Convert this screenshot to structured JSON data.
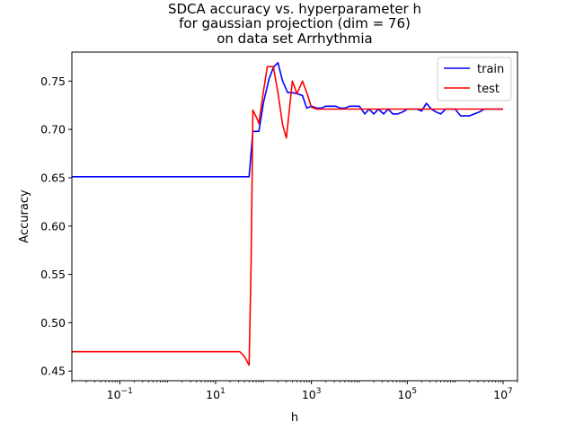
{
  "chart_data": {
    "type": "line",
    "title_lines": [
      "SDCA accuracy vs. hyperparameter h",
      "for gaussian projection (dim = 76)",
      "on data set Arrhythmia"
    ],
    "xlabel": "h",
    "ylabel": "Accuracy",
    "xscale": "log",
    "xlim": [
      0.01,
      20000000
    ],
    "ylim": [
      0.44,
      0.78
    ],
    "xticks": [
      {
        "value": 0.1,
        "mantissa": "10",
        "exponent": "−1"
      },
      {
        "value": 10,
        "mantissa": "10",
        "exponent": "1"
      },
      {
        "value": 1000,
        "mantissa": "10",
        "exponent": "3"
      },
      {
        "value": 100000,
        "mantissa": "10",
        "exponent": "5"
      },
      {
        "value": 10000000,
        "mantissa": "10",
        "exponent": "7"
      }
    ],
    "yticks": [
      "0.45",
      "0.50",
      "0.55",
      "0.60",
      "0.65",
      "0.70",
      "0.75"
    ],
    "legend_position": "upper right",
    "grid": false,
    "series": [
      {
        "name": "train",
        "color": "#0000ff",
        "points": [
          [
            0.01,
            0.651
          ],
          [
            20,
            0.651
          ],
          [
            50,
            0.651
          ],
          [
            60,
            0.698
          ],
          [
            80,
            0.698
          ],
          [
            100,
            0.728
          ],
          [
            130,
            0.752
          ],
          [
            160,
            0.764
          ],
          [
            200,
            0.769
          ],
          [
            250,
            0.75
          ],
          [
            320,
            0.738
          ],
          [
            400,
            0.738
          ],
          [
            500,
            0.737
          ],
          [
            650,
            0.735
          ],
          [
            800,
            0.722
          ],
          [
            1000,
            0.724
          ],
          [
            1300,
            0.722
          ],
          [
            1600,
            0.722
          ],
          [
            2000,
            0.724
          ],
          [
            2500,
            0.724
          ],
          [
            3200,
            0.724
          ],
          [
            4000,
            0.722
          ],
          [
            5000,
            0.722
          ],
          [
            6300,
            0.724
          ],
          [
            8000,
            0.724
          ],
          [
            10000,
            0.724
          ],
          [
            13000,
            0.716
          ],
          [
            16000,
            0.721
          ],
          [
            20000,
            0.716
          ],
          [
            25000,
            0.721
          ],
          [
            32000,
            0.716
          ],
          [
            40000,
            0.721
          ],
          [
            50000,
            0.716
          ],
          [
            63000,
            0.716
          ],
          [
            80000,
            0.718
          ],
          [
            100000,
            0.721
          ],
          [
            130000,
            0.721
          ],
          [
            160000,
            0.721
          ],
          [
            200000,
            0.719
          ],
          [
            250000,
            0.727
          ],
          [
            320000,
            0.721
          ],
          [
            400000,
            0.718
          ],
          [
            500000,
            0.716
          ],
          [
            630000,
            0.721
          ],
          [
            800000,
            0.721
          ],
          [
            1000000,
            0.721
          ],
          [
            1300000,
            0.714
          ],
          [
            1600000,
            0.714
          ],
          [
            2000000,
            0.714
          ],
          [
            2500000,
            0.716
          ],
          [
            3200000,
            0.718
          ],
          [
            4000000,
            0.721
          ],
          [
            10000000,
            0.721
          ]
        ]
      },
      {
        "name": "test",
        "color": "#ff0000",
        "points": [
          [
            0.01,
            0.47
          ],
          [
            20,
            0.47
          ],
          [
            32,
            0.47
          ],
          [
            40,
            0.465
          ],
          [
            50,
            0.456
          ],
          [
            55,
            0.56
          ],
          [
            60,
            0.72
          ],
          [
            75,
            0.71
          ],
          [
            80,
            0.706
          ],
          [
            100,
            0.74
          ],
          [
            120,
            0.765
          ],
          [
            160,
            0.765
          ],
          [
            200,
            0.738
          ],
          [
            250,
            0.705
          ],
          [
            300,
            0.691
          ],
          [
            400,
            0.75
          ],
          [
            500,
            0.737
          ],
          [
            650,
            0.75
          ],
          [
            800,
            0.738
          ],
          [
            1000,
            0.723
          ],
          [
            1300,
            0.721
          ],
          [
            2000,
            0.721
          ],
          [
            3200,
            0.721
          ],
          [
            5000,
            0.721
          ],
          [
            10000,
            0.721
          ],
          [
            20000,
            0.721
          ],
          [
            50000,
            0.721
          ],
          [
            100000,
            0.721
          ],
          [
            200000,
            0.721
          ],
          [
            500000,
            0.721
          ],
          [
            1000000,
            0.721
          ],
          [
            2000000,
            0.721
          ],
          [
            5000000,
            0.721
          ],
          [
            10000000,
            0.721
          ]
        ]
      }
    ]
  }
}
